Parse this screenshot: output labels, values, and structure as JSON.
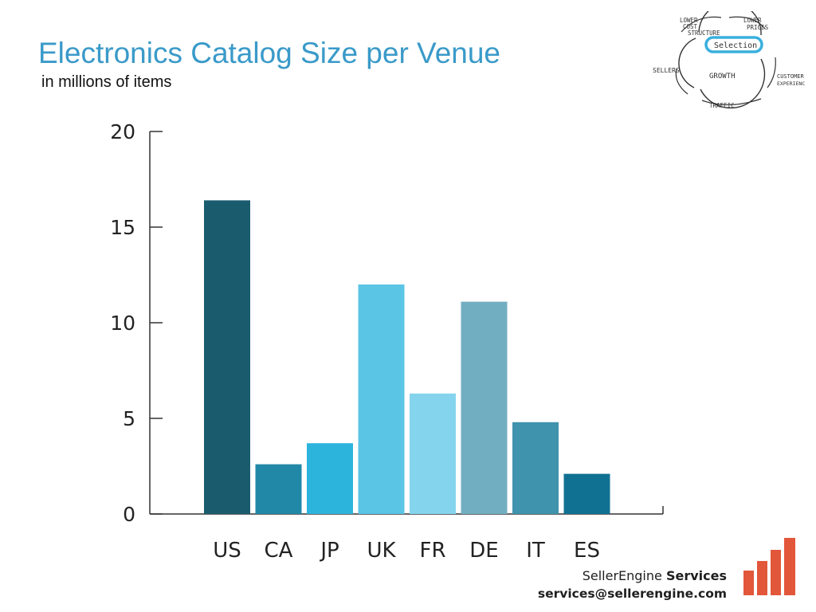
{
  "slide": {
    "brand_name": "SellerEngine",
    "brand_services": "Services",
    "email": "services@sellerengine.com"
  },
  "flywheel": {
    "labels": [
      "LOWER",
      "COST",
      "STRUCTURE",
      "LOWER",
      "PRICES",
      "Selection",
      "SELLERS",
      "GROWTH",
      "CUSTOMER",
      "EXPERIENCE",
      "TRAFFIC"
    ]
  },
  "chart_data": {
    "type": "bar",
    "title": "Electronics Catalog Size per Venue",
    "subtitle": "in millions of items",
    "categories": [
      "US",
      "CA",
      "JP",
      "UK",
      "FR",
      "DE",
      "IT",
      "ES"
    ],
    "values": [
      16.4,
      2.6,
      3.7,
      12.0,
      6.3,
      11.1,
      4.8,
      2.1
    ],
    "colors": [
      "#1a5c6e",
      "#2288a8",
      "#2db4dd",
      "#5bc5e6",
      "#85d4ee",
      "#72aec2",
      "#3f93ad",
      "#117192"
    ],
    "ylim": [
      0,
      20
    ],
    "yticks": [
      0,
      5,
      10,
      15,
      20
    ],
    "grid": false,
    "legend": "none"
  }
}
